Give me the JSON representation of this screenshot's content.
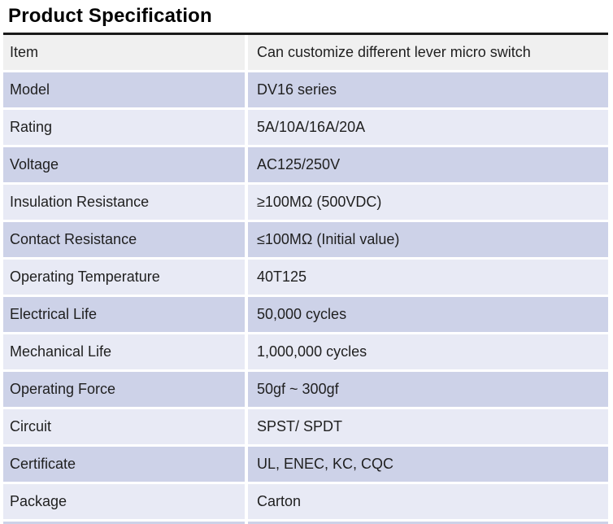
{
  "page": {
    "title": "Product Specification"
  },
  "colors": {
    "background": "#ffffff",
    "title_text": "#000000",
    "rule": "#1a1a1a",
    "cell_text": "#1f1f1f",
    "row_gray": "#f0f0f0",
    "row_dark": "#cdd2e8",
    "row_light": "#e8eaf5"
  },
  "table": {
    "rows": [
      {
        "label": "Item",
        "value": "Can customize different lever micro switch",
        "tone": "gray"
      },
      {
        "label": "Model",
        "value": "DV16 series",
        "tone": "dark"
      },
      {
        "label": "Rating",
        "value": "5A/10A/16A/20A",
        "tone": "light"
      },
      {
        "label": "Voltage",
        "value": "AC125/250V",
        "tone": "dark"
      },
      {
        "label": "Insulation Resistance",
        "value": "≥100MΩ (500VDC)",
        "tone": "light"
      },
      {
        "label": "Contact Resistance",
        "value": "≤100MΩ (Initial value)",
        "tone": "dark"
      },
      {
        "label": "Operating Temperature",
        "value": "40T125",
        "tone": "light"
      },
      {
        "label": "Electrical Life",
        "value": "50,000 cycles",
        "tone": "dark"
      },
      {
        "label": "Mechanical Life",
        "value": "1,000,000 cycles",
        "tone": "light"
      },
      {
        "label": "Operating Force",
        "value": "50gf ~ 300gf",
        "tone": "dark"
      },
      {
        "label": "Circuit",
        "value": "SPST/ SPDT",
        "tone": "light"
      },
      {
        "label": "Certificate",
        "value": "UL, ENEC, KC, CQC",
        "tone": "dark"
      },
      {
        "label": "Package",
        "value": "Carton",
        "tone": "light"
      }
    ],
    "partial_next_row_tone": "dark"
  }
}
